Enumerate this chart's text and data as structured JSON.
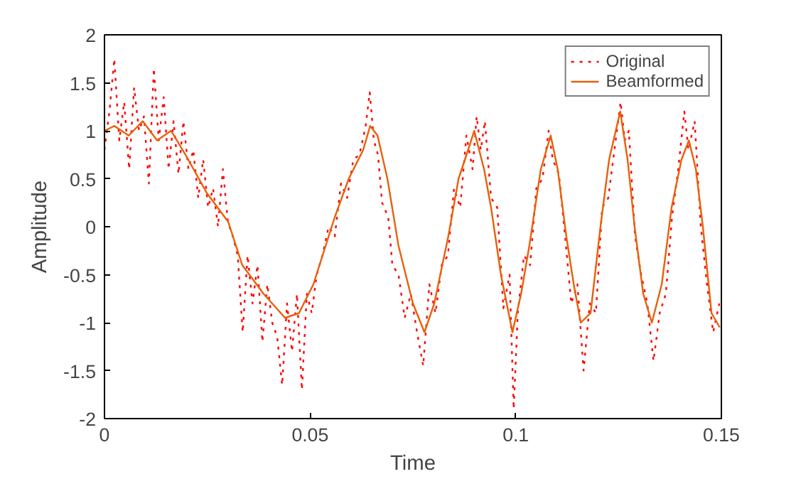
{
  "chart_data": {
    "type": "line",
    "xlabel": "Time",
    "ylabel": "Amplitude",
    "xlim": [
      0,
      0.15
    ],
    "ylim": [
      -2,
      2
    ],
    "xticks": [
      0,
      0.05,
      0.1,
      0.15
    ],
    "yticks": [
      -2,
      -1.5,
      -1,
      -0.5,
      0,
      0.5,
      1,
      1.5,
      2
    ],
    "grid": false,
    "legend": "top right",
    "marker": "none",
    "series": [
      {
        "name": "Original",
        "color": "#ff0000",
        "line_style": "dotted",
        "x": [
          0,
          0.0012,
          0.0024,
          0.0036,
          0.0048,
          0.006,
          0.0072,
          0.0084,
          0.0096,
          0.0108,
          0.012,
          0.0132,
          0.0144,
          0.0156,
          0.0168,
          0.018,
          0.0192,
          0.0204,
          0.0216,
          0.0228,
          0.024,
          0.0252,
          0.0264,
          0.0276,
          0.0288,
          0.03,
          0.0312,
          0.0324,
          0.0336,
          0.0348,
          0.036,
          0.0372,
          0.0384,
          0.0396,
          0.0408,
          0.042,
          0.0432,
          0.0444,
          0.0456,
          0.0468,
          0.048,
          0.0492,
          0.0504,
          0.0516,
          0.053,
          0.0545,
          0.056,
          0.0575,
          0.059,
          0.0605,
          0.062,
          0.0635,
          0.0645,
          0.0655,
          0.0665,
          0.0675,
          0.069,
          0.07,
          0.0715,
          0.073,
          0.0745,
          0.076,
          0.0775,
          0.079,
          0.0805,
          0.082,
          0.0835,
          0.085,
          0.0865,
          0.088,
          0.0895,
          0.0905,
          0.0915,
          0.0925,
          0.094,
          0.0955,
          0.097,
          0.0985,
          0.0995,
          0.1005,
          0.102,
          0.1035,
          0.105,
          0.1065,
          0.108,
          0.109,
          0.1105,
          0.112,
          0.1135,
          0.115,
          0.1165,
          0.118,
          0.1195,
          0.121,
          0.1225,
          0.124,
          0.1255,
          0.1265,
          0.1275,
          0.129,
          0.1305,
          0.132,
          0.1335,
          0.135,
          0.1365,
          0.138,
          0.1395,
          0.141,
          0.142,
          0.1435,
          0.145,
          0.1465,
          0.148,
          0.1495
        ],
        "values": [
          0.8,
          1.2,
          1.75,
          0.9,
          1.3,
          0.6,
          1.45,
          1.0,
          1.15,
          0.45,
          1.65,
          0.9,
          1.35,
          0.6,
          1.1,
          0.55,
          1.1,
          0.6,
          0.8,
          0.3,
          0.7,
          0.2,
          0.4,
          0.0,
          0.6,
          0.05,
          -0.1,
          -0.3,
          -1.1,
          -0.3,
          -0.8,
          -0.4,
          -1.2,
          -0.6,
          -1.0,
          -1.15,
          -1.65,
          -0.8,
          -1.3,
          -0.7,
          -1.7,
          -0.7,
          -0.9,
          -0.5,
          -0.3,
          0.0,
          -0.1,
          0.45,
          0.3,
          0.7,
          0.75,
          1.05,
          1.4,
          0.9,
          0.75,
          0.25,
          0.1,
          -0.4,
          -0.5,
          -0.95,
          -0.7,
          -1.1,
          -1.45,
          -0.6,
          -0.9,
          -0.4,
          -0.3,
          0.4,
          0.2,
          0.95,
          0.6,
          1.15,
          0.8,
          1.1,
          0.3,
          0.2,
          -0.85,
          -0.5,
          -1.9,
          -0.9,
          -0.3,
          -0.4,
          0.4,
          0.5,
          1.0,
          0.7,
          0.55,
          -0.1,
          -0.8,
          -0.6,
          -1.5,
          -0.8,
          -0.9,
          0.2,
          0.3,
          0.8,
          1.3,
          0.9,
          1.0,
          -0.1,
          -0.5,
          -0.8,
          -1.4,
          -0.9,
          -0.7,
          0.1,
          0.6,
          1.2,
          0.8,
          1.1,
          0.0,
          -0.6,
          -1.1,
          -0.8
        ]
      },
      {
        "name": "Beamformed",
        "color": "#e8600a",
        "line_style": "solid",
        "x": [
          0,
          0.0024,
          0.0059,
          0.0093,
          0.0128,
          0.0162,
          0.0197,
          0.0249,
          0.0301,
          0.0335,
          0.0387,
          0.0439,
          0.0473,
          0.0508,
          0.056,
          0.0594,
          0.0629,
          0.0646,
          0.0664,
          0.0688,
          0.0715,
          0.075,
          0.0778,
          0.0802,
          0.0836,
          0.0861,
          0.0888,
          0.0899,
          0.0923,
          0.094,
          0.0964,
          0.0992,
          0.1013,
          0.1033,
          0.1061,
          0.1085,
          0.1102,
          0.1123,
          0.1141,
          0.1158,
          0.1182,
          0.1206,
          0.1227,
          0.1254,
          0.1272,
          0.1289,
          0.131,
          0.1331,
          0.1355,
          0.1379,
          0.1403,
          0.1421,
          0.1438,
          0.1455,
          0.1476,
          0.1496
        ],
        "values": [
          1.0,
          1.05,
          0.95,
          1.1,
          0.9,
          1.0,
          0.75,
          0.35,
          0.05,
          -0.4,
          -0.7,
          -0.95,
          -0.9,
          -0.6,
          0.1,
          0.5,
          0.8,
          1.05,
          0.95,
          0.5,
          -0.2,
          -0.8,
          -1.1,
          -0.8,
          -0.1,
          0.5,
          0.85,
          1.0,
          0.6,
          0.2,
          -0.5,
          -1.1,
          -0.7,
          -0.2,
          0.6,
          0.95,
          0.6,
          -0.1,
          -0.6,
          -1.0,
          -0.9,
          0.0,
          0.7,
          1.2,
          0.7,
          0.0,
          -0.7,
          -1.0,
          -0.6,
          0.2,
          0.7,
          0.9,
          0.6,
          0.0,
          -0.9,
          -1.05
        ]
      }
    ]
  }
}
